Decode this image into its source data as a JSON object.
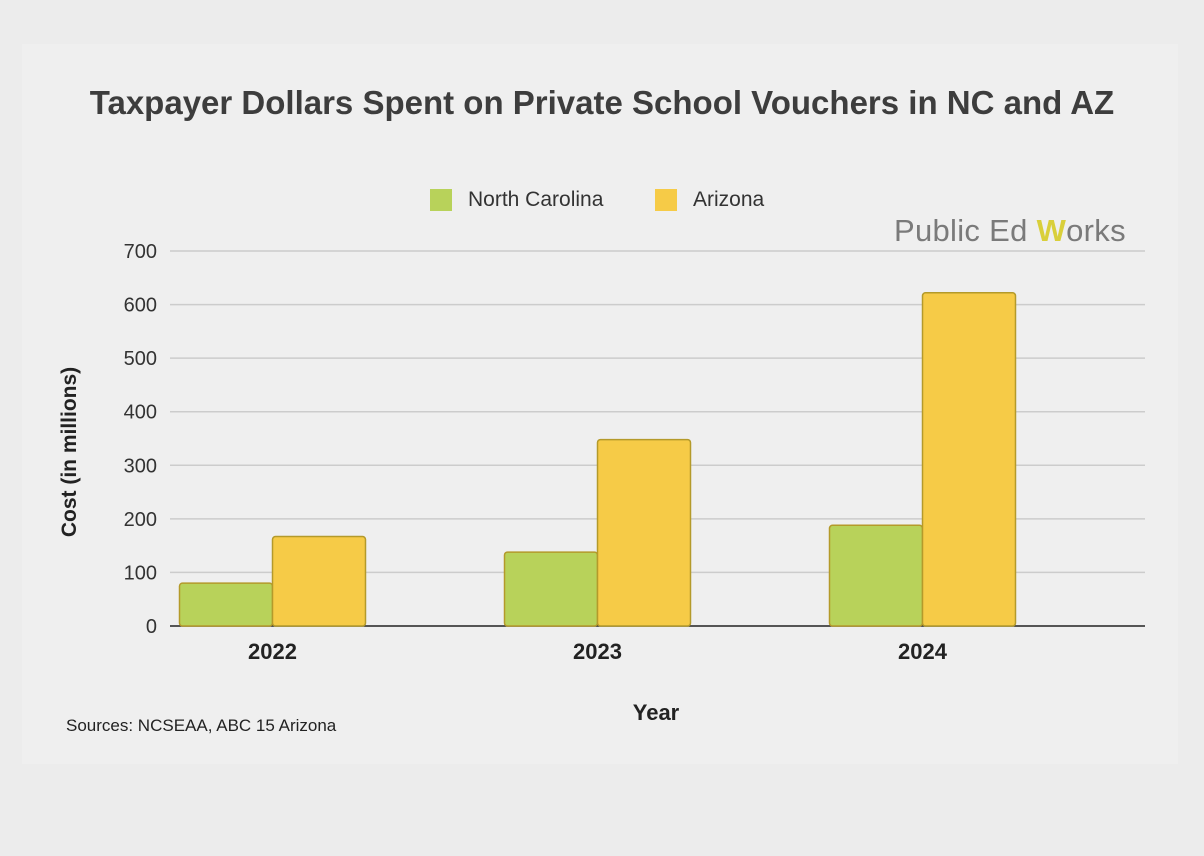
{
  "chart_data": {
    "type": "bar",
    "title": "Taxpayer Dollars Spent on Private School Vouchers in NC and AZ",
    "xlabel": "Year",
    "ylabel": "Cost (in millions)",
    "categories": [
      "2022",
      "2023",
      "2024"
    ],
    "series": [
      {
        "name": "North Carolina",
        "color": "#b8d25a",
        "values": [
          80,
          138,
          188
        ]
      },
      {
        "name": "Arizona",
        "color": "#f6cb47",
        "values": [
          167,
          348,
          622
        ]
      }
    ],
    "ylim": [
      0,
      700
    ],
    "yticks": [
      "0",
      "100",
      "200",
      "300",
      "400",
      "500",
      "600",
      "700"
    ],
    "grid": true,
    "legend_position": "top-center"
  },
  "brand": {
    "text_before": "Public Ed ",
    "w_letter": "W",
    "text_after": "orks"
  },
  "sources": "Sources: NCSEAA, ABC 15 Arizona",
  "colors": {
    "background": "#efefef",
    "gridline": "#cccccc",
    "bar_border": "#b49a2a"
  }
}
